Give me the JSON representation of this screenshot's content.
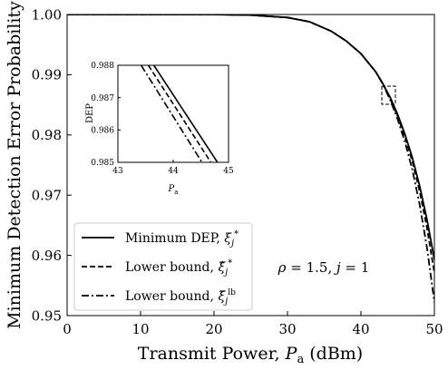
{
  "chart_data": [
    {
      "type": "line",
      "xlabel": "Transmit Power, Pa (dBm)",
      "ylabel": "Minimum Detection Error Probability",
      "xlim": [
        0,
        50
      ],
      "ylim": [
        0.95,
        1.0
      ],
      "xticks": [
        "0",
        "10",
        "20",
        "30",
        "40",
        "50"
      ],
      "yticks": [
        "0.95",
        "0.96",
        "0.97",
        "0.98",
        "0.99",
        "1.00"
      ],
      "annotation": "ρ = 1.5, j = 1",
      "legend_position": "bottom-left",
      "series": [
        {
          "name": "Minimum DEP, ξj*",
          "style": "solid",
          "x": [
            0,
            10,
            20,
            25,
            30,
            33,
            36,
            38,
            40,
            42,
            43,
            44,
            45,
            46,
            47,
            48,
            49,
            50
          ],
          "y": [
            1.0,
            1.0,
            1.0,
            0.9999,
            0.9995,
            0.9988,
            0.9972,
            0.9956,
            0.9935,
            0.9905,
            0.9885,
            0.9862,
            0.9834,
            0.9801,
            0.9762,
            0.9715,
            0.9659,
            0.9593
          ]
        },
        {
          "name": "Lower bound, ξ̂j*",
          "style": "dashed",
          "x": [
            0,
            10,
            20,
            25,
            30,
            33,
            36,
            38,
            40,
            42,
            43,
            44,
            45,
            46,
            47,
            48,
            49,
            50
          ],
          "y": [
            1.0,
            1.0,
            1.0,
            0.9999,
            0.9995,
            0.9988,
            0.9972,
            0.9956,
            0.9935,
            0.9905,
            0.9885,
            0.98595,
            0.9831,
            0.9797,
            0.9756,
            0.9706,
            0.9645,
            0.9571
          ]
        },
        {
          "name": "Lower bound, ξ̆j^lb",
          "style": "dashdot",
          "x": [
            0,
            10,
            20,
            25,
            30,
            33,
            36,
            38,
            40,
            42,
            43,
            44,
            45,
            46,
            47,
            48,
            49,
            50
          ],
          "y": [
            1.0,
            1.0,
            1.0,
            0.9999,
            0.9995,
            0.9988,
            0.9972,
            0.9956,
            0.9935,
            0.9905,
            0.9884,
            0.98575,
            0.9826,
            0.9788,
            0.9742,
            0.9684,
            0.9612,
            0.9522
          ]
        }
      ]
    },
    {
      "type": "line",
      "xlabel": "Pa",
      "ylabel": "DEP",
      "xlim": [
        43,
        45
      ],
      "ylim": [
        0.985,
        0.988
      ],
      "xticks": [
        "43",
        "44",
        "45"
      ],
      "yticks": [
        "0.985",
        "0.986",
        "0.987",
        "0.988"
      ],
      "series": [
        {
          "style": "solid",
          "x": [
            43.65,
            44.8
          ],
          "y": [
            0.988,
            0.985
          ]
        },
        {
          "style": "dashed",
          "x": [
            43.55,
            44.68
          ],
          "y": [
            0.988,
            0.985
          ]
        },
        {
          "style": "dashdot",
          "x": [
            43.42,
            44.52
          ],
          "y": [
            0.988,
            0.985
          ]
        }
      ]
    }
  ]
}
